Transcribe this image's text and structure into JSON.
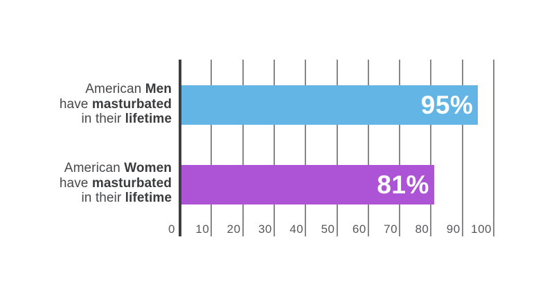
{
  "chart_data": {
    "type": "bar",
    "orientation": "horizontal",
    "title": "",
    "xlabel": "",
    "ylabel": "",
    "xlim": [
      0,
      100
    ],
    "x_ticks": [
      0,
      10,
      20,
      30,
      40,
      50,
      60,
      70,
      80,
      90,
      100
    ],
    "grid": true,
    "legend": false,
    "categories": [
      "American Men have masturbated in their lifetime",
      "American Women have masturbated in their lifetime"
    ],
    "bars": [
      {
        "id": "american-men",
        "value": 95,
        "value_label": "95%",
        "color": "#63b5e5",
        "label_lines": [
          [
            {
              "text": "American ",
              "bold": false
            },
            {
              "text": "Men",
              "bold": true
            }
          ],
          [
            {
              "text": "have ",
              "bold": false
            },
            {
              "text": "masturbated",
              "bold": true
            }
          ],
          [
            {
              "text": "in their ",
              "bold": false
            },
            {
              "text": "lifetime",
              "bold": true
            }
          ]
        ]
      },
      {
        "id": "american-women",
        "value": 81,
        "value_label": "81%",
        "color": "#ad53d5",
        "label_lines": [
          [
            {
              "text": "American ",
              "bold": false
            },
            {
              "text": "Women",
              "bold": true
            }
          ],
          [
            {
              "text": "have ",
              "bold": false
            },
            {
              "text": "masturbated",
              "bold": true
            }
          ],
          [
            {
              "text": "in their ",
              "bold": false
            },
            {
              "text": "lifetime",
              "bold": true
            }
          ]
        ]
      }
    ],
    "colors": {
      "background": "#ffffff",
      "axis_line": "#3d3e40",
      "gridline": "#85868a",
      "tick_text": "#57585c",
      "category_text": "#47484b",
      "value_text": "#ffffff",
      "bar_men": "#63b5e5",
      "bar_women": "#ad53d5"
    }
  }
}
